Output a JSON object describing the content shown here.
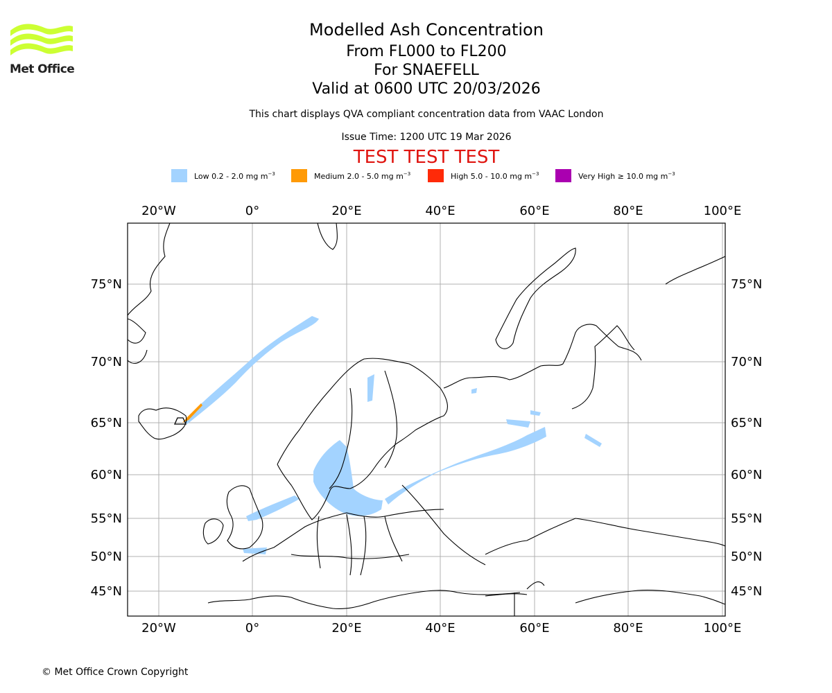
{
  "logo": {
    "text": "Met Office",
    "color": "#ccff33"
  },
  "header": {
    "title": "Modelled Ash Concentration",
    "range": "From FL000 to FL200",
    "volcano": "For SNAEFELL",
    "valid": "Valid at 0600 UTC 20/03/2026",
    "note": "This chart displays QVA compliant concentration data from VAAC London",
    "issue_time": "Issue Time: 1200 UTC 19 Mar 2026",
    "test_banner": "TEST TEST TEST"
  },
  "legend": [
    {
      "label": "Low 0.2 - 2.0 mg m",
      "unit_sup": "−3",
      "color": "#a3d3ff"
    },
    {
      "label": "Medium 2.0 - 5.0 mg m",
      "unit_sup": "−3",
      "color": "#ff9a06"
    },
    {
      "label": "High 5.0 - 10.0 mg m",
      "unit_sup": "−3",
      "color": "#ff2a08"
    },
    {
      "label": "Very High  ≥  10.0 mg m",
      "unit_sup": "−3",
      "color": "#aa00b0"
    }
  ],
  "map": {
    "lon_labels": [
      "20°W",
      "0°",
      "20°E",
      "40°E",
      "60°E",
      "80°E",
      "100°E"
    ],
    "lat_labels": [
      "75°N",
      "70°N",
      "65°N",
      "60°N",
      "55°N",
      "50°N",
      "45°N"
    ],
    "grid": true,
    "ash_color": "#a3d3ff",
    "source_color": "#ff9a06"
  },
  "footer": {
    "copyright": "© Met Office Crown Copyright"
  }
}
